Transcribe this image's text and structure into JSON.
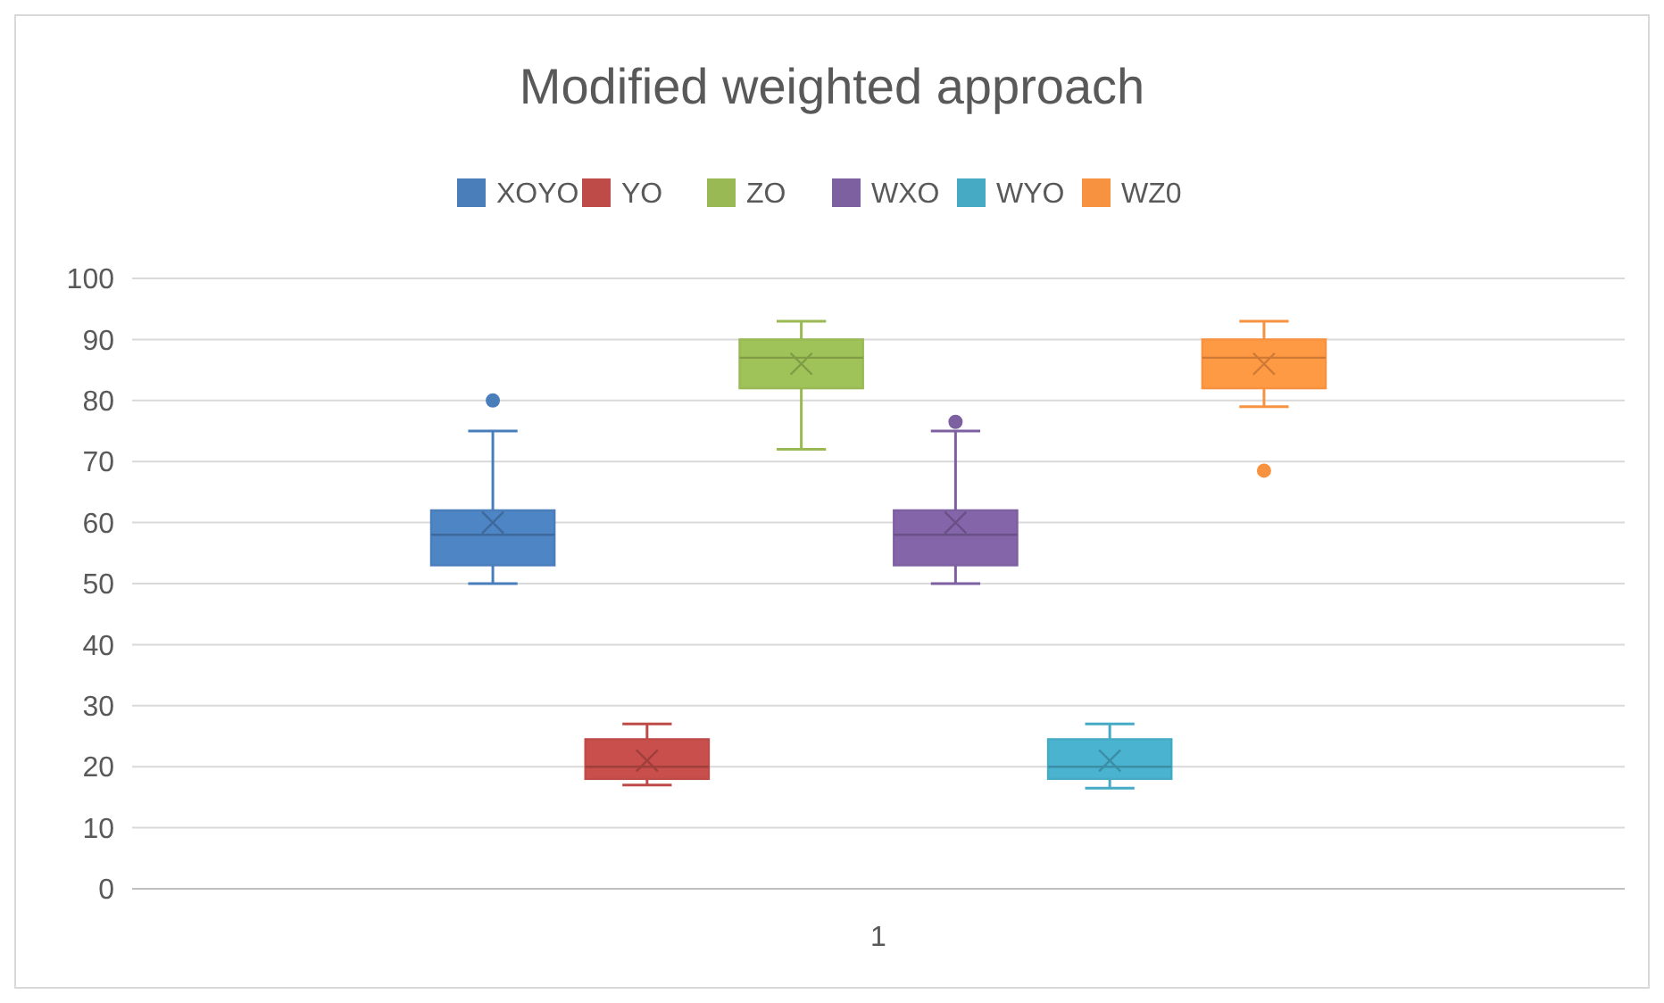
{
  "chart_data": {
    "type": "box",
    "title": "Modified weighted approach",
    "categories": [
      "1"
    ],
    "series": [
      {
        "name": "XOYO",
        "color": "#4a7ebb",
        "boxes": [
          {
            "low": 50,
            "q1": 53,
            "median": 58,
            "q3": 62,
            "high": 75,
            "mean": 60,
            "outliers": [
              80
            ]
          }
        ]
      },
      {
        "name": "YO",
        "color": "#be4b48",
        "boxes": [
          {
            "low": 17,
            "q1": 18,
            "median": 20,
            "q3": 24.5,
            "high": 27,
            "mean": 21
          }
        ]
      },
      {
        "name": "ZO",
        "color": "#98b954",
        "boxes": [
          {
            "low": 72,
            "q1": 82,
            "median": 87,
            "q3": 90,
            "high": 93,
            "mean": 86
          }
        ]
      },
      {
        "name": "WXO",
        "color": "#7d60a0",
        "boxes": [
          {
            "low": 50,
            "q1": 53,
            "median": 58,
            "q3": 62,
            "high": 75,
            "mean": 60,
            "outliers": [
              76.5
            ]
          }
        ]
      },
      {
        "name": "WYO",
        "color": "#46aac5",
        "boxes": [
          {
            "low": 16.5,
            "q1": 18,
            "median": 20,
            "q3": 24.5,
            "high": 27,
            "mean": 21
          }
        ]
      },
      {
        "name": "WZ0",
        "color": "#f69240",
        "boxes": [
          {
            "low": 79,
            "q1": 82,
            "median": 87,
            "q3": 90,
            "high": 93,
            "mean": 86,
            "outliers": [
              68.5
            ]
          }
        ]
      }
    ],
    "ylim": [
      0,
      100
    ],
    "yticks": [
      0,
      10,
      20,
      30,
      40,
      50,
      60,
      70,
      80,
      90,
      100
    ],
    "grid": "y",
    "legend": "top"
  }
}
